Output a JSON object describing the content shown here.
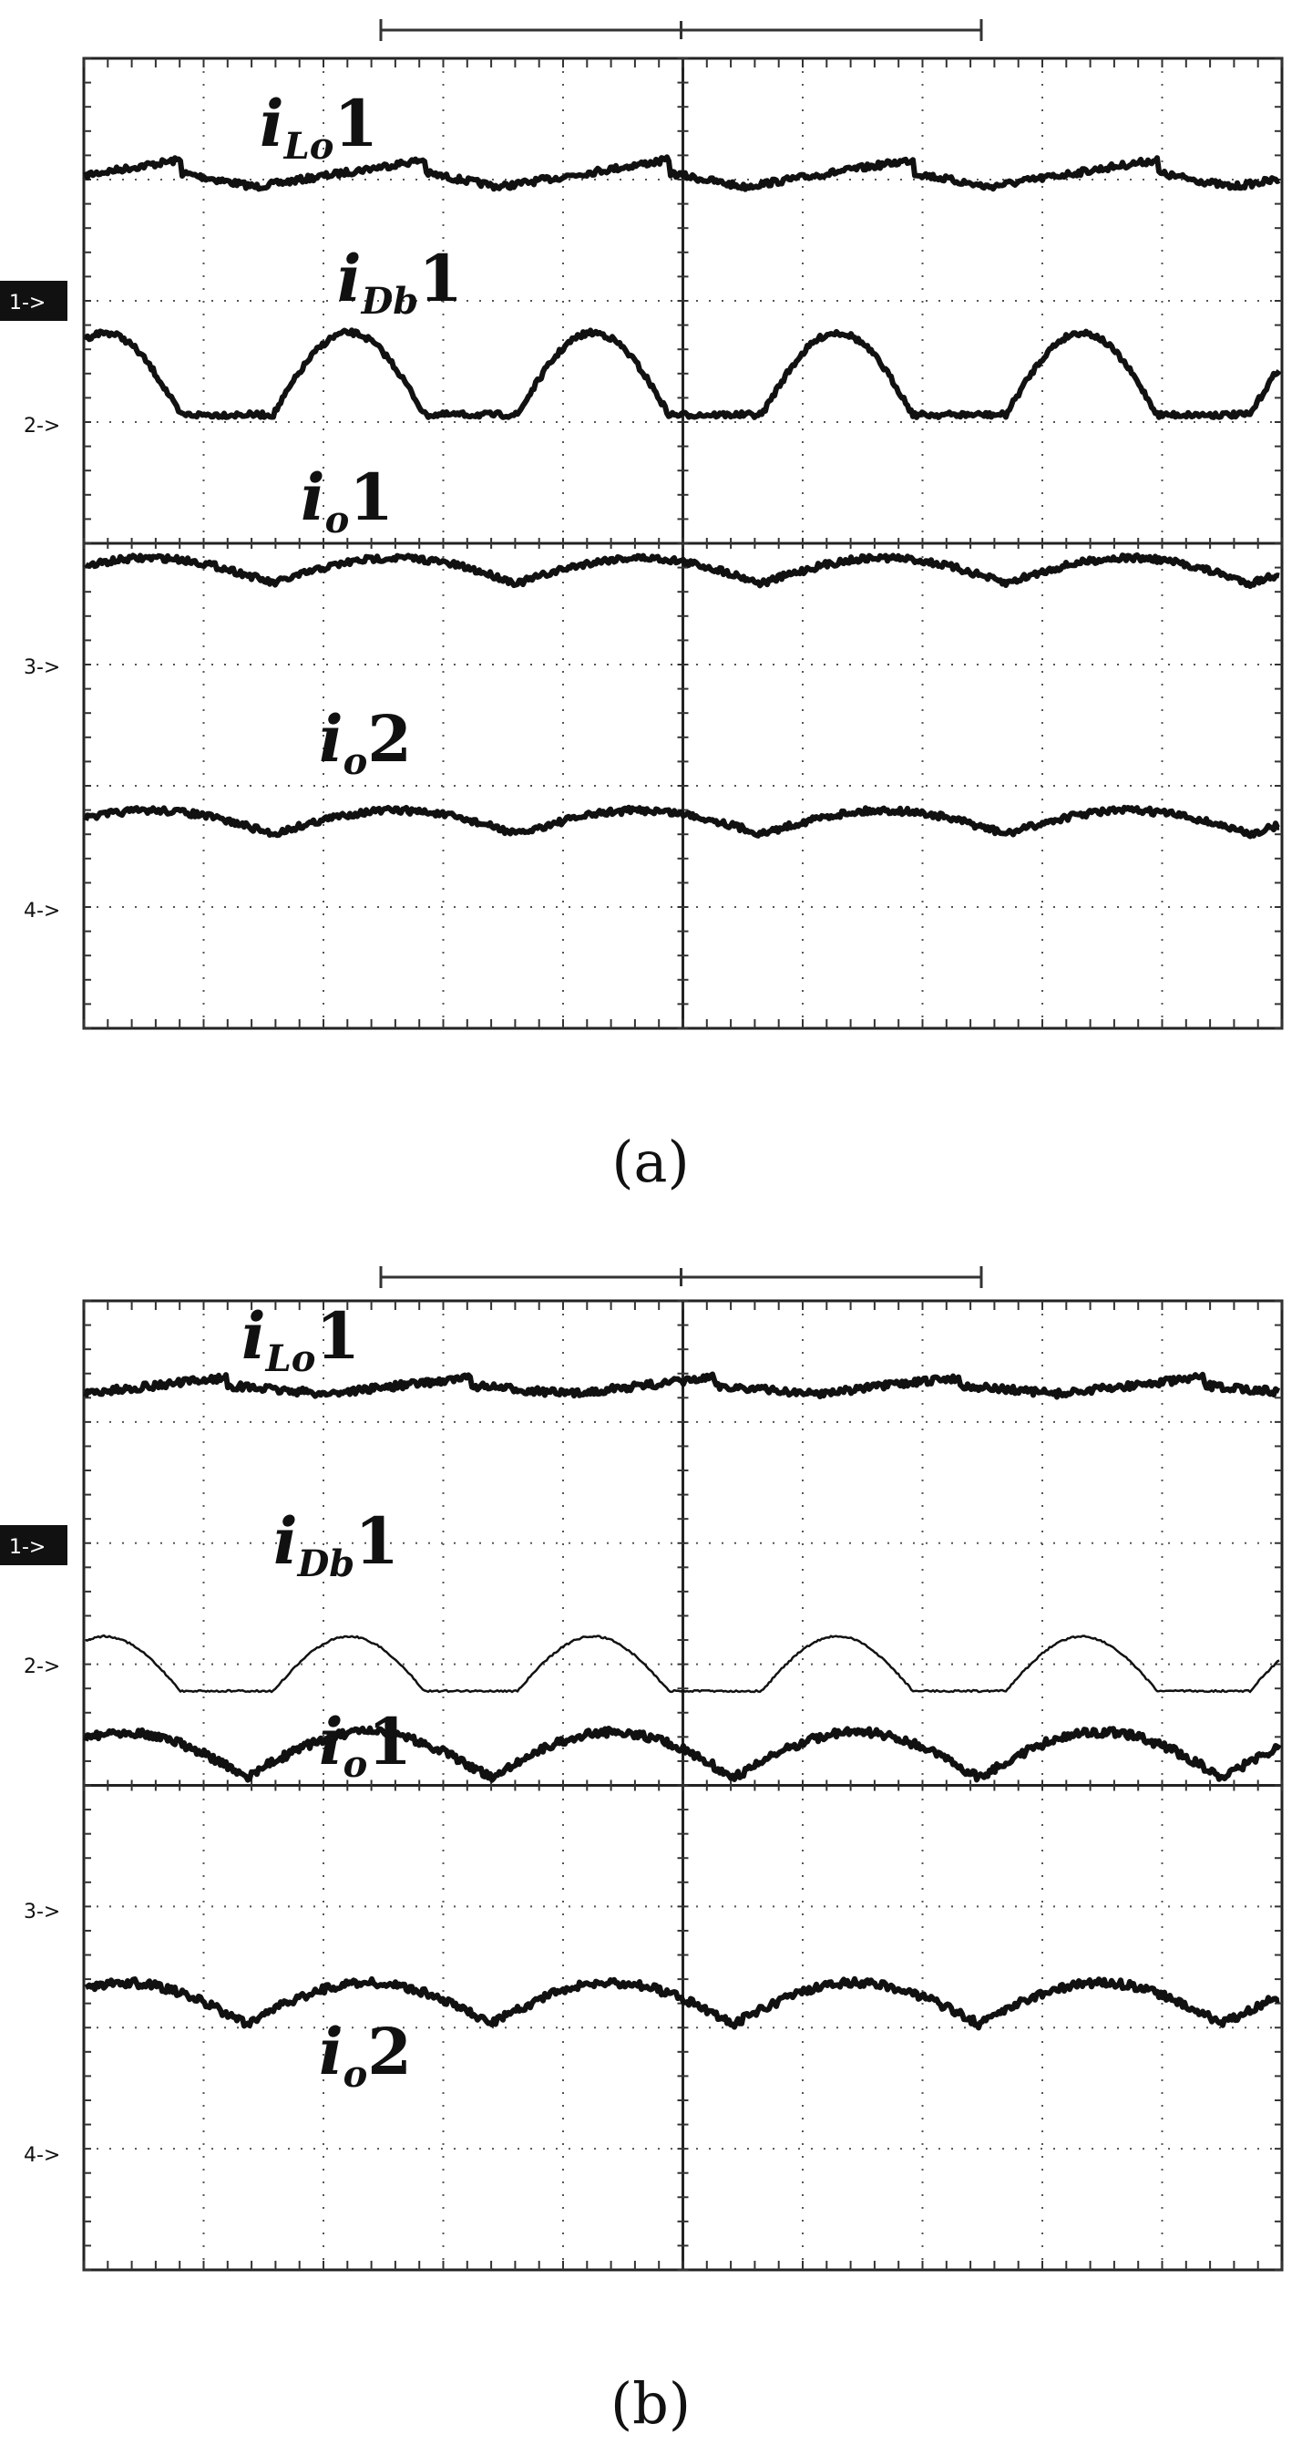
{
  "figure": {
    "panels": [
      {
        "id": "a",
        "caption": "(a)",
        "channel_markers": [
          "1->",
          "2->",
          "3->",
          "4->"
        ],
        "active_marker": "1->",
        "grid": {
          "x_divisions": 10,
          "y_divisions": 8,
          "split_screen": true
        },
        "traces": [
          {
            "name": "iLo1",
            "label": {
              "main": "i",
              "sub": "Lo",
              "digit": "1"
            },
            "shape": "triangular",
            "style": "thick"
          },
          {
            "name": "iDb1",
            "label": {
              "main": "i",
              "sub": "Db",
              "digit": "1"
            },
            "shape": "rectified-sine-pulse",
            "style": "thick"
          },
          {
            "name": "io1",
            "label": {
              "main": "i",
              "sub": "o",
              "digit": "1"
            },
            "shape": "ripple",
            "style": "thick"
          },
          {
            "name": "io2",
            "label": {
              "main": "i",
              "sub": "o",
              "digit": "2"
            },
            "shape": "ripple",
            "style": "thick"
          }
        ]
      },
      {
        "id": "b",
        "caption": "(b)",
        "channel_markers": [
          "1->",
          "2->",
          "3->",
          "4->"
        ],
        "active_marker": "1->",
        "grid": {
          "x_divisions": 10,
          "y_divisions": 8,
          "split_screen": true
        },
        "traces": [
          {
            "name": "iLo1",
            "label": {
              "main": "i",
              "sub": "Lo",
              "digit": "1"
            },
            "shape": "triangular-small",
            "style": "thick"
          },
          {
            "name": "iDb1",
            "label": {
              "main": "i",
              "sub": "Db",
              "digit": "1"
            },
            "shape": "rectified-sine-pulse",
            "style": "thin"
          },
          {
            "name": "io1",
            "label": {
              "main": "i",
              "sub": "o",
              "digit": "1"
            },
            "shape": "rectified-sine",
            "style": "thick"
          },
          {
            "name": "io2",
            "label": {
              "main": "i",
              "sub": "o",
              "digit": "2"
            },
            "shape": "rectified-sine",
            "style": "thick"
          }
        ]
      }
    ]
  },
  "chart_data": [
    {
      "type": "line",
      "panel": "a",
      "series": [
        {},
        {},
        {},
        {}
      ],
      "grid": true
    },
    {
      "type": "line",
      "panel": "b",
      "series": [
        {},
        {},
        {},
        {}
      ],
      "grid": true
    }
  ]
}
